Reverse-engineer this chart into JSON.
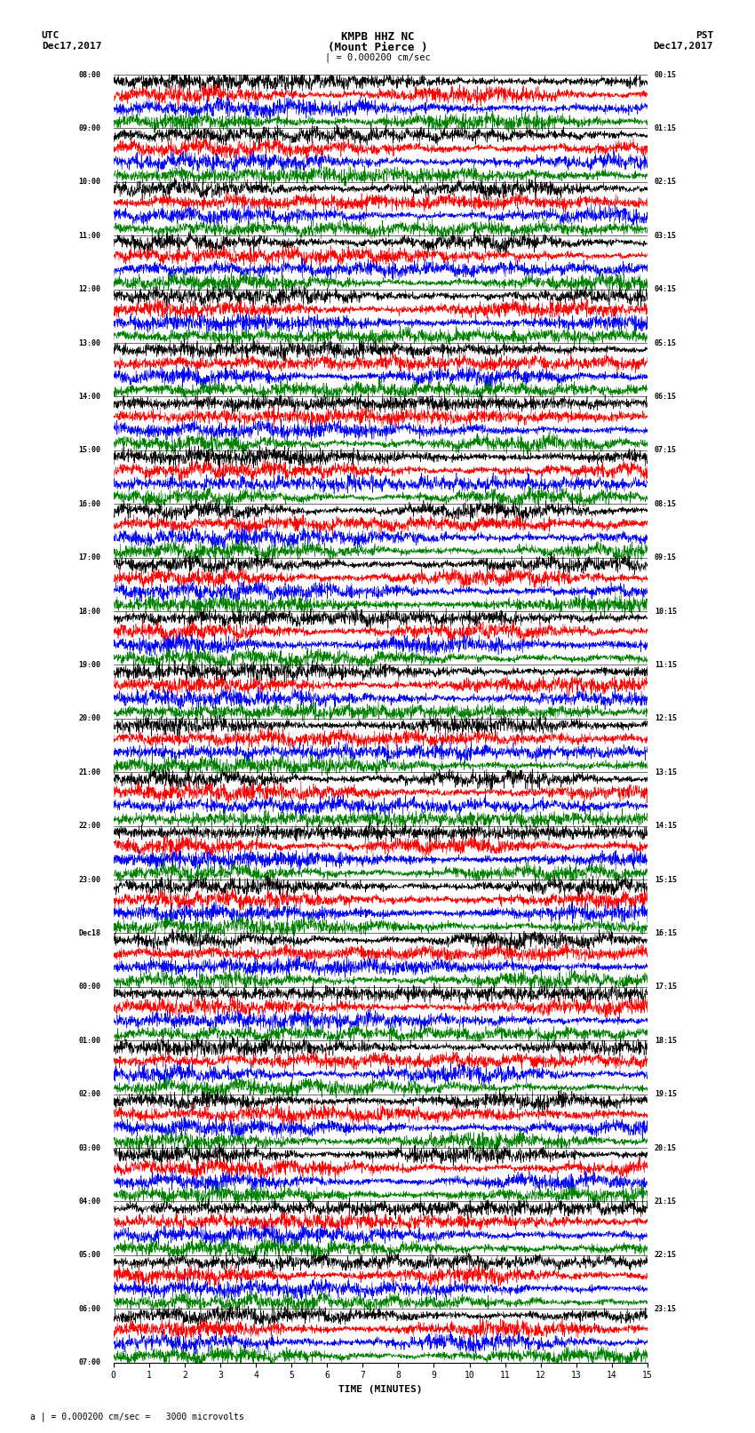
{
  "title_line1": "KMPB HHZ NC",
  "title_line2": "(Mount Pierce )",
  "scale_label": "| = 0.000200 cm/sec",
  "left_header_line1": "UTC",
  "left_header_line2": "Dec17,2017",
  "right_header_line1": "PST",
  "right_header_line2": "Dec17,2017",
  "footer_label": "a | = 0.000200 cm/sec =   3000 microvolts",
  "xlabel": "TIME (MINUTES)",
  "background_color": "#ffffff",
  "trace_colors": [
    "black",
    "red",
    "blue",
    "green"
  ],
  "num_rows": 96,
  "minutes_per_row": 15,
  "traces_per_row": 4,
  "utc_labels": [
    "08:00",
    "09:00",
    "10:00",
    "11:00",
    "12:00",
    "13:00",
    "14:00",
    "15:00",
    "16:00",
    "17:00",
    "18:00",
    "19:00",
    "20:00",
    "21:00",
    "22:00",
    "23:00",
    "Dec18",
    "00:00",
    "01:00",
    "02:00",
    "03:00",
    "04:00",
    "05:00",
    "06:00",
    "07:00"
  ],
  "pst_labels": [
    "00:15",
    "01:15",
    "02:15",
    "03:15",
    "04:15",
    "05:15",
    "06:15",
    "07:15",
    "08:15",
    "09:15",
    "10:15",
    "11:15",
    "12:15",
    "13:15",
    "14:15",
    "15:15",
    "16:15",
    "17:15",
    "18:15",
    "19:15",
    "20:15",
    "21:15",
    "22:15",
    "23:15"
  ],
  "amp_scale": 0.48,
  "n_points": 2000,
  "linewidth": 0.4
}
